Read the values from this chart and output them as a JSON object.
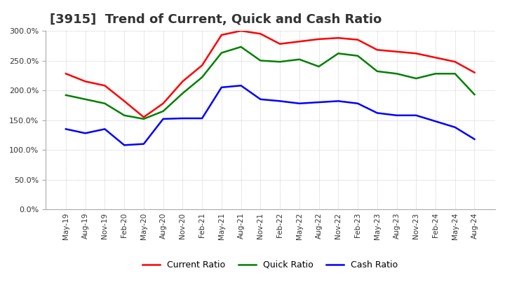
{
  "title": "[3915]  Trend of Current, Quick and Cash Ratio",
  "x_labels": [
    "May-19",
    "Aug-19",
    "Nov-19",
    "Feb-20",
    "May-20",
    "Aug-20",
    "Nov-20",
    "Feb-21",
    "May-21",
    "Aug-21",
    "Nov-21",
    "Feb-22",
    "May-22",
    "Aug-22",
    "Nov-22",
    "Feb-23",
    "May-23",
    "Aug-23",
    "Nov-23",
    "Feb-24",
    "May-24",
    "Aug-24"
  ],
  "current_ratio": [
    228,
    215,
    208,
    182,
    155,
    178,
    215,
    242,
    293,
    300,
    295,
    278,
    282,
    286,
    288,
    285,
    268,
    265,
    262,
    255,
    248,
    230
  ],
  "quick_ratio": [
    192,
    185,
    178,
    158,
    152,
    165,
    195,
    222,
    263,
    273,
    250,
    248,
    252,
    240,
    262,
    258,
    232,
    228,
    220,
    228,
    228,
    193
  ],
  "cash_ratio": [
    135,
    128,
    135,
    108,
    110,
    152,
    153,
    153,
    205,
    208,
    185,
    182,
    178,
    180,
    182,
    178,
    162,
    158,
    158,
    148,
    138,
    118
  ],
  "current_color": "#FF0000",
  "quick_color": "#008000",
  "cash_color": "#0000FF",
  "ylim": [
    0,
    300
  ],
  "yticks": [
    0,
    50,
    100,
    150,
    200,
    250,
    300
  ],
  "background_color": "#ffffff",
  "title_fontsize": 13,
  "line_width": 1.8,
  "grid_color": "#aaaaaa",
  "grid_linestyle": "dotted"
}
